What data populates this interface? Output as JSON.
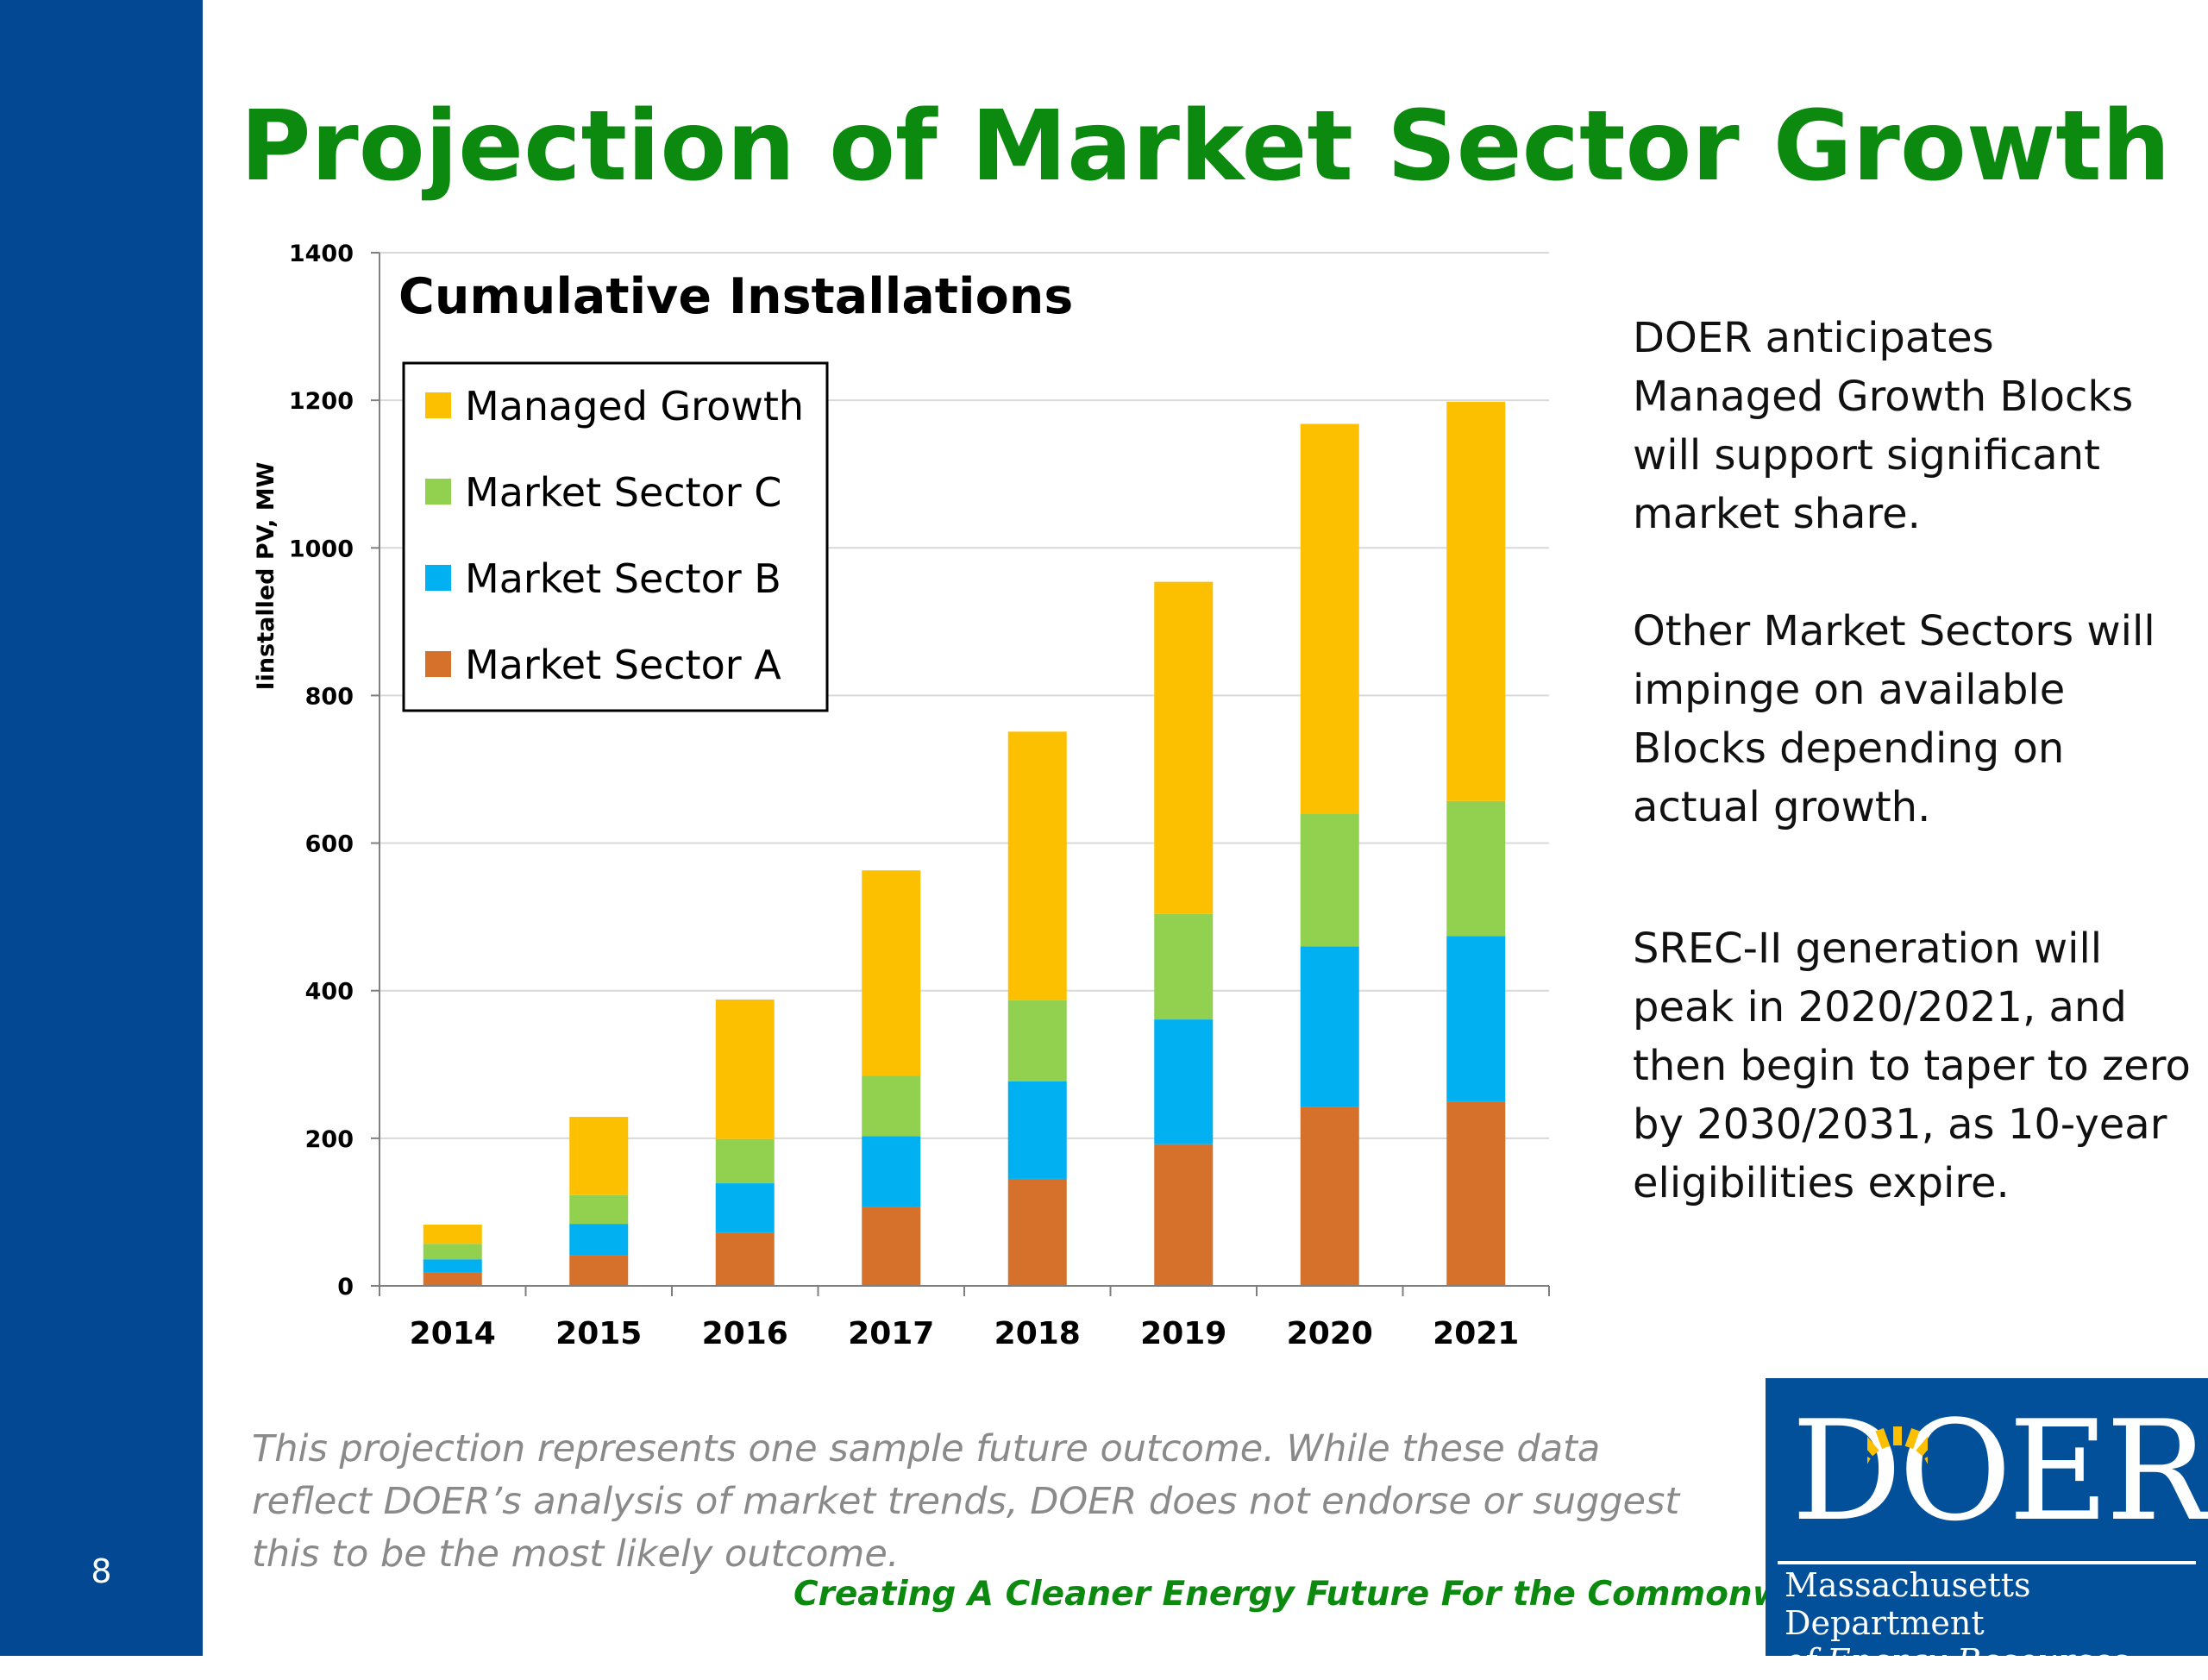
{
  "slide": {
    "title": "Projection of Market Sector Growth",
    "page_number": "8",
    "notes": [
      "DOER anticipates Managed Growth Blocks will support significant market share.",
      "Other Market Sectors will impinge on available Blocks depending on actual growth.",
      "SREC-II generation will peak in 2020/2021, and then begin to taper to zero by 2030/2031, as 10-year eligibilities expire."
    ],
    "disclaimer": "This projection represents one sample future outcome.  While these data reflect DOER’s analysis of market trends, DOER does not endorse or suggest this to be the most  likely outcome.",
    "tagline": "Creating A Cleaner Energy Future For the Commonwealth",
    "logo": {
      "word": "DOER",
      "line1": "Massachusetts Department",
      "line2": "of Energy Resources"
    }
  },
  "colors": {
    "sidebar": "#034892",
    "title": "#0c8a10",
    "managed_growth": "#fdc000",
    "sector_c": "#92d050",
    "sector_b": "#00b0f0",
    "sector_a": "#d5712a"
  },
  "chart_data": {
    "type": "bar",
    "stacked": true,
    "title": "Cumulative Installations",
    "ylabel": "Iinstalled PV, MW",
    "xlabel": "",
    "ylim": [
      0,
      1400
    ],
    "yticks": [
      0,
      200,
      400,
      600,
      800,
      1000,
      1200,
      1400
    ],
    "grid": true,
    "legend_position": "top-left",
    "categories": [
      "2014",
      "2015",
      "2016",
      "2017",
      "2018",
      "2019",
      "2020",
      "2021"
    ],
    "series": [
      {
        "name": "Market Sector A",
        "color": "#d5712a",
        "values": [
          18,
          42,
          72,
          107,
          145,
          192,
          243,
          250
        ]
      },
      {
        "name": "Market Sector B",
        "color": "#00b0f0",
        "values": [
          18,
          42,
          67,
          96,
          132,
          169,
          217,
          224
        ]
      },
      {
        "name": "Market Sector C",
        "color": "#92d050",
        "values": [
          21,
          39,
          60,
          82,
          110,
          143,
          180,
          183
        ]
      },
      {
        "name": "Managed Growth",
        "color": "#fdc000",
        "values": [
          26,
          106,
          189,
          278,
          364,
          450,
          528,
          541
        ]
      }
    ],
    "legend_order": [
      "Managed Growth",
      "Market Sector C",
      "Market Sector B",
      "Market Sector A"
    ]
  }
}
